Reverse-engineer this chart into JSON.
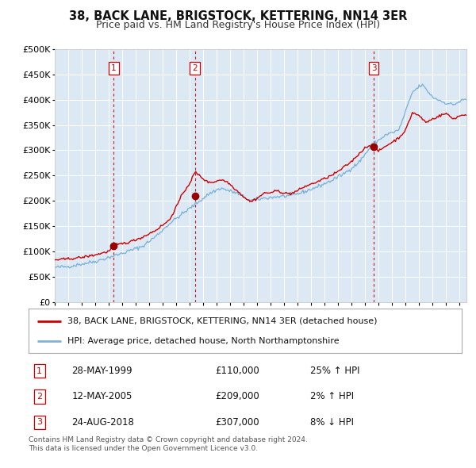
{
  "title": "38, BACK LANE, BRIGSTOCK, KETTERING, NN14 3ER",
  "subtitle": "Price paid vs. HM Land Registry's House Price Index (HPI)",
  "legend_label_red": "38, BACK LANE, BRIGSTOCK, KETTERING, NN14 3ER (detached house)",
  "legend_label_blue": "HPI: Average price, detached house, North Northamptonshire",
  "transactions": [
    {
      "num": 1,
      "date": "28-MAY-1999",
      "price": 110000,
      "pct": "25%",
      "dir": "↑"
    },
    {
      "num": 2,
      "date": "12-MAY-2005",
      "price": 209000,
      "pct": "2%",
      "dir": "↑"
    },
    {
      "num": 3,
      "date": "24-AUG-2018",
      "price": 307000,
      "pct": "8%",
      "dir": "↓"
    }
  ],
  "footnote1": "Contains HM Land Registry data © Crown copyright and database right 2024.",
  "footnote2": "This data is licensed under the Open Government Licence v3.0.",
  "ylim": [
    0,
    500000
  ],
  "yticks": [
    0,
    50000,
    100000,
    150000,
    200000,
    250000,
    300000,
    350000,
    400000,
    450000,
    500000
  ],
  "background_color": "#dce9f5",
  "fig_bg_color": "#ffffff",
  "red_line_color": "#cc0000",
  "blue_line_color": "#7fb3d9",
  "grid_color": "#ffffff",
  "vline_color": "#cc0000",
  "marker_color": "#990000",
  "box_color": "#cc0000",
  "x_start_year": 1995.0,
  "x_end_year": 2025.5,
  "transaction_years": [
    1999.375,
    2005.375,
    2018.625
  ],
  "transaction_prices": [
    110000,
    209000,
    307000
  ]
}
